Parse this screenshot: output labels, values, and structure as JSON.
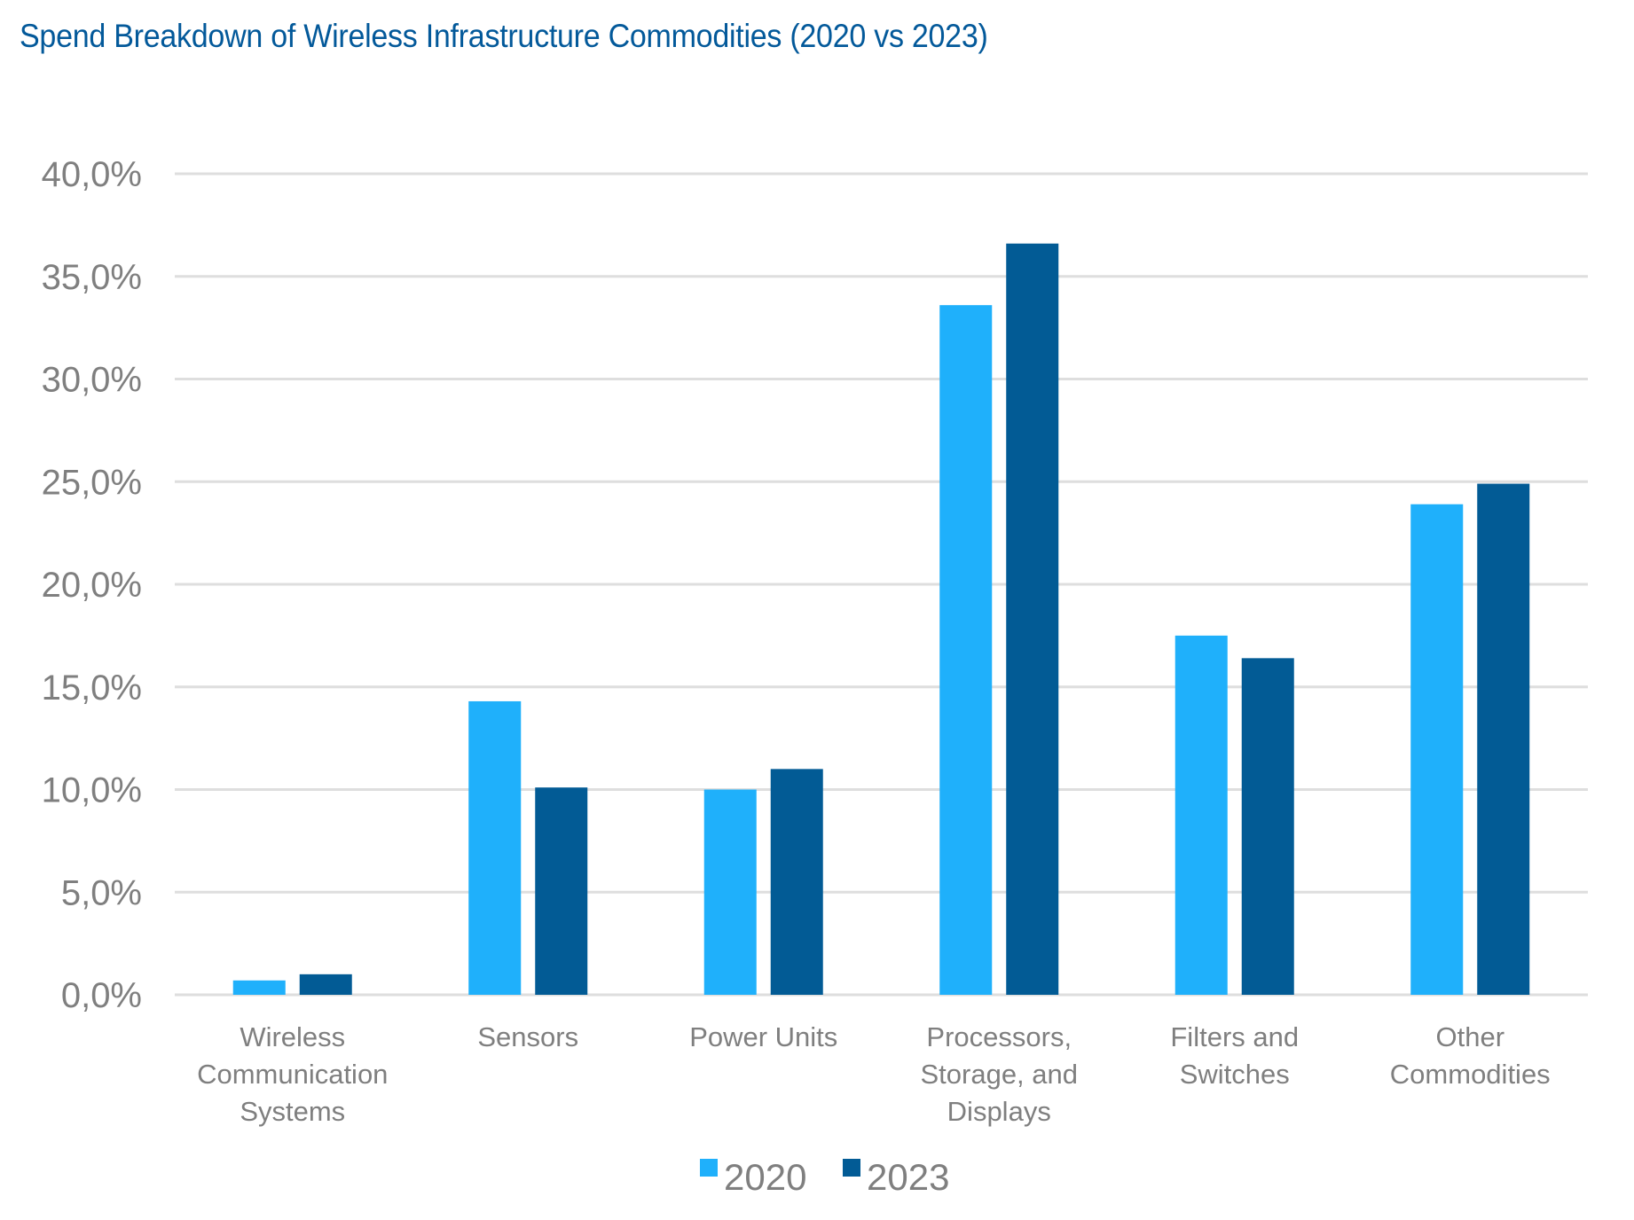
{
  "chart_data": {
    "type": "bar",
    "title": "Spend Breakdown of Wireless Infrastructure Commodities (2020 vs 2023)",
    "xlabel": "",
    "ylabel": "",
    "ylim": [
      0,
      40
    ],
    "yticks": [
      0,
      5,
      10,
      15,
      20,
      25,
      30,
      35,
      40
    ],
    "ytick_labels": [
      "0,0%",
      "5,0%",
      "10,0%",
      "15,0%",
      "20,0%",
      "25,0%",
      "30,0%",
      "35,0%",
      "40,0%"
    ],
    "grid": true,
    "legend_position": "bottom",
    "categories": [
      [
        "Wireless",
        "Communication",
        "Systems"
      ],
      [
        "Sensors"
      ],
      [
        "Power Units"
      ],
      [
        "Processors,",
        "Storage, and",
        "Displays"
      ],
      [
        "Filters and",
        "Switches"
      ],
      [
        "Other",
        "Commodities"
      ]
    ],
    "series": [
      {
        "name": "2020",
        "color": "#1fb0fb",
        "values": [
          0.7,
          14.3,
          10.0,
          33.6,
          17.5,
          23.9
        ]
      },
      {
        "name": "2023",
        "color": "#025b95",
        "values": [
          1.0,
          10.1,
          11.0,
          36.6,
          16.4,
          24.9
        ]
      }
    ],
    "units": "%"
  }
}
